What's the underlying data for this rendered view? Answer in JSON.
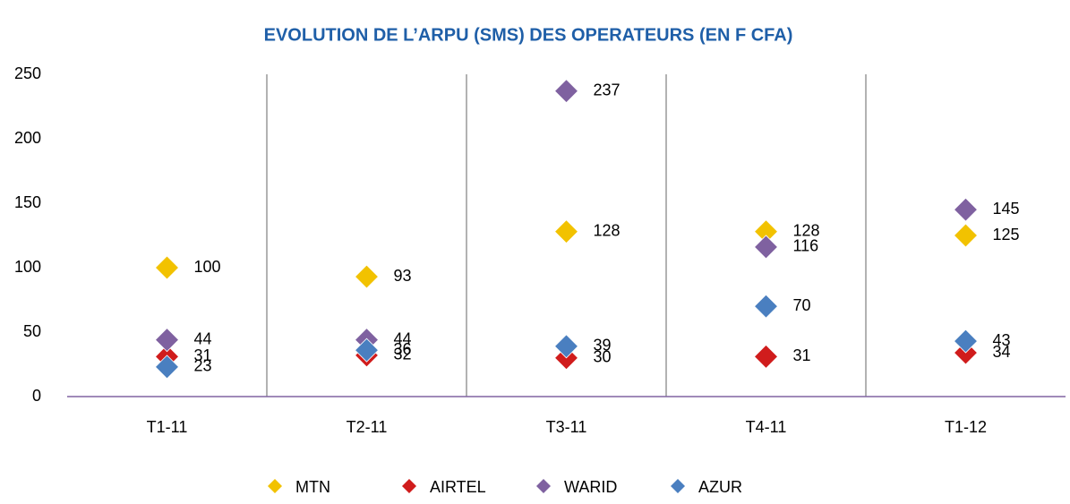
{
  "chart_data": {
    "type": "scatter",
    "title": "EVOLUTION DE L’ARPU (SMS) DES OPERATEURS (EN F CFA)",
    "categories": [
      "T1-11",
      "T2-11",
      "T3-11",
      "T4-11",
      "T1-12"
    ],
    "series": [
      {
        "name": "MTN",
        "color": "#f2c200",
        "values": [
          100,
          93,
          128,
          128,
          125
        ]
      },
      {
        "name": "AIRTEL",
        "color": "#d01c1c",
        "values": [
          31,
          32,
          30,
          31,
          34
        ]
      },
      {
        "name": "WARID",
        "color": "#7f61a0",
        "values": [
          44,
          44,
          237,
          116,
          145
        ]
      },
      {
        "name": "AZUR",
        "color": "#4a7fc0",
        "values": [
          23,
          36,
          39,
          70,
          43
        ]
      }
    ],
    "ylim": [
      0,
      250
    ],
    "yticks": [
      0,
      50,
      100,
      150,
      200,
      250
    ]
  }
}
